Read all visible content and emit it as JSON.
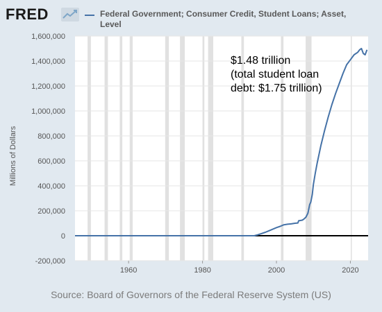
{
  "header": {
    "logo_text": "FRED",
    "logo_icon": "trend-line-icon",
    "series_title": "Federal Government; Consumer Credit, Student Loans; Asset, Level"
  },
  "colors": {
    "background": "#e1e9f0",
    "plot_background": "#ffffff",
    "series": "#4572a7",
    "recession": "#e1e1e1",
    "zero_line": "#000000"
  },
  "footer": {
    "source": "Source: Board of Governors of the Federal Reserve System (US)"
  },
  "chart_data": {
    "type": "line",
    "title": "",
    "xlabel": "",
    "ylabel": "Millions of Dollars",
    "xlim": [
      1945.5,
      2024.8
    ],
    "ylim": [
      -200000,
      1600000
    ],
    "x_ticks": [
      1960,
      1980,
      2000,
      2020
    ],
    "y_ticks": [
      -200000,
      0,
      200000,
      400000,
      600000,
      800000,
      1000000,
      1200000,
      1400000,
      1600000
    ],
    "y_tick_labels": [
      "-200,000",
      "0",
      "200,000",
      "400,000",
      "600,000",
      "800,000",
      "1,000,000",
      "1,200,000",
      "1,400,000",
      "1,600,000"
    ],
    "grid": "horizontal",
    "recessions": [
      [
        1948.9,
        1949.8
      ],
      [
        1953.5,
        1954.4
      ],
      [
        1957.6,
        1958.3
      ],
      [
        1960.3,
        1961.1
      ],
      [
        1969.9,
        1970.9
      ],
      [
        1973.9,
        1975.2
      ],
      [
        1980.0,
        1980.5
      ],
      [
        1981.5,
        1982.9
      ],
      [
        1990.5,
        1991.2
      ],
      [
        2001.2,
        2001.9
      ],
      [
        2007.9,
        2009.5
      ],
      [
        2020.1,
        2020.4
      ]
    ],
    "annotation": {
      "lines": [
        "$1.48 trillion",
        "(total student loan",
        "debt: $1.75 trillion)"
      ]
    },
    "series": [
      {
        "name": "Federal Government; Consumer Credit, Student Loans; Asset, Level",
        "x": [
          1945.5,
          1994.0,
          1995.0,
          1996.0,
          1997.0,
          1998.0,
          1999.0,
          2000.0,
          2001.0,
          2002.0,
          2003.0,
          2004.0,
          2005.0,
          2005.8,
          2006.0,
          2006.5,
          2007.0,
          2007.5,
          2008.0,
          2008.5,
          2009.0,
          2009.3,
          2009.7,
          2010.0,
          2010.5,
          2011.0,
          2012.0,
          2013.0,
          2014.0,
          2015.0,
          2016.0,
          2017.0,
          2018.0,
          2019.0,
          2020.0,
          2021.0,
          2022.0,
          2022.5,
          2023.0,
          2023.5,
          2024.0,
          2024.5
        ],
        "y": [
          0,
          0,
          8000,
          18000,
          28000,
          40000,
          52000,
          65000,
          75000,
          88000,
          92000,
          95000,
          100000,
          102000,
          120000,
          122000,
          125000,
          135000,
          150000,
          180000,
          250000,
          270000,
          330000,
          410000,
          500000,
          580000,
          720000,
          840000,
          950000,
          1050000,
          1140000,
          1220000,
          1300000,
          1370000,
          1410000,
          1450000,
          1470000,
          1490000,
          1500000,
          1460000,
          1450000,
          1490000
        ]
      }
    ]
  }
}
